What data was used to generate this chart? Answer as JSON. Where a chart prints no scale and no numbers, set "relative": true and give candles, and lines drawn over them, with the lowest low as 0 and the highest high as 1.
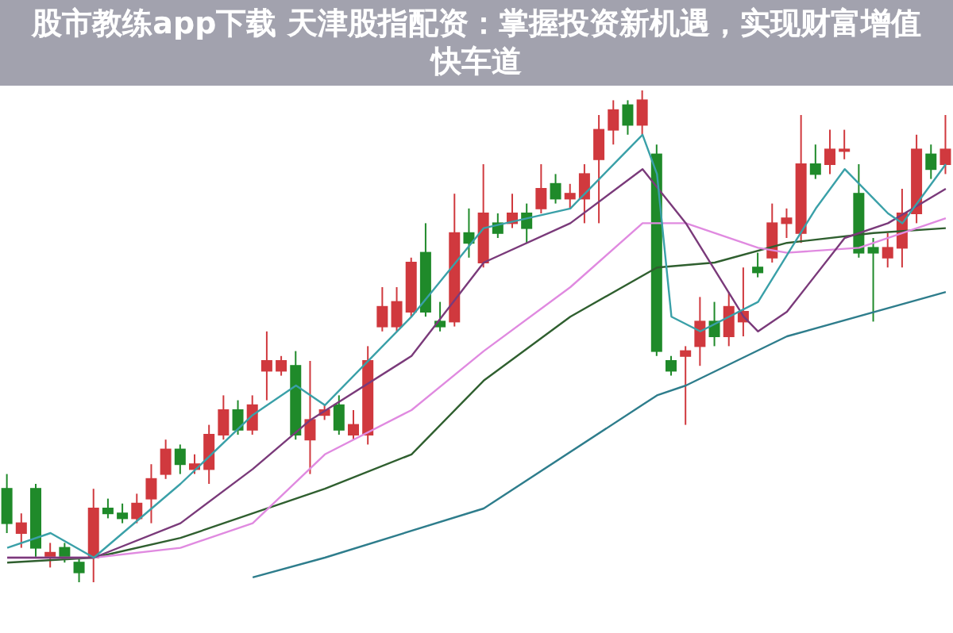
{
  "chart_data": {
    "type": "candlestick",
    "title": "股市教练app下载 天津股指配资：掌握投资新机遇，实现财富增值快车道",
    "relative": true,
    "categories": [
      null,
      null,
      null,
      null,
      null,
      null,
      null,
      null,
      null,
      null,
      null,
      null,
      null,
      null,
      null,
      null,
      null,
      null,
      null,
      null,
      null,
      null,
      null,
      null,
      null,
      null,
      null,
      null,
      null,
      null,
      null,
      null,
      null,
      null,
      null,
      null,
      null,
      null,
      null,
      null,
      null,
      null,
      null,
      null,
      null,
      null,
      null,
      null,
      null,
      null,
      null,
      null,
      null,
      null,
      null,
      null,
      null,
      null,
      null,
      null,
      null,
      null,
      null,
      null,
      null,
      null
    ],
    "ohlc": [
      [
        0.19,
        0.22,
        0.1,
        0.12
      ],
      [
        0.1,
        0.14,
        0.07,
        0.12
      ],
      [
        0.19,
        0.2,
        0.05,
        0.07
      ],
      [
        0.05,
        0.08,
        0.03,
        0.06
      ],
      [
        0.07,
        0.08,
        0.04,
        0.05
      ],
      [
        0.04,
        0.05,
        0,
        0.02
      ],
      [
        0.05,
        0.19,
        0,
        0.15
      ],
      [
        0.15,
        0.17,
        0.13,
        0.14
      ],
      [
        0.14,
        0.16,
        0.12,
        0.13
      ],
      [
        0.13,
        0.18,
        0.12,
        0.16
      ],
      [
        0.17,
        0.24,
        0.12,
        0.21
      ],
      [
        0.22,
        0.29,
        0.21,
        0.27
      ],
      [
        0.27,
        0.28,
        0.22,
        0.24
      ],
      [
        0.23,
        0.26,
        0.22,
        0.24
      ],
      [
        0.23,
        0.32,
        0.2,
        0.3
      ],
      [
        0.3,
        0.38,
        0.29,
        0.35
      ],
      [
        0.35,
        0.37,
        0.3,
        0.31
      ],
      [
        0.31,
        0.38,
        0.3,
        0.36
      ],
      [
        0.43,
        0.51,
        0.37,
        0.45
      ],
      [
        0.43,
        0.46,
        0.42,
        0.45
      ],
      [
        0.44,
        0.47,
        0.29,
        0.3
      ],
      [
        0.29,
        0.45,
        0.22,
        0.33
      ],
      [
        0.34,
        0.36,
        0.33,
        0.35
      ],
      [
        0.36,
        0.38,
        0.3,
        0.31
      ],
      [
        0.3,
        0.35,
        0.29,
        0.32
      ],
      [
        0.3,
        0.48,
        0.28,
        0.45
      ],
      [
        0.52,
        0.6,
        0.51,
        0.56
      ],
      [
        0.52,
        0.6,
        0.51,
        0.57
      ],
      [
        0.55,
        0.66,
        0.54,
        0.65
      ],
      [
        0.67,
        0.73,
        0.54,
        0.55
      ],
      [
        0.53,
        0.57,
        0.51,
        0.52
      ],
      [
        0.53,
        0.79,
        0.52,
        0.71
      ],
      [
        0.71,
        0.76,
        0.66,
        0.69
      ],
      [
        0.65,
        0.85,
        0.64,
        0.75
      ],
      [
        0.73,
        0.75,
        0.7,
        0.71
      ],
      [
        0.73,
        0.79,
        0.72,
        0.75
      ],
      [
        0.75,
        0.77,
        0.69,
        0.72
      ],
      [
        0.76,
        0.85,
        0.75,
        0.8
      ],
      [
        0.81,
        0.83,
        0.77,
        0.78
      ],
      [
        0.78,
        0.81,
        0.76,
        0.79
      ],
      [
        0.78,
        0.85,
        0.73,
        0.83
      ],
      [
        0.86,
        0.95,
        0.73,
        0.92
      ],
      [
        0.92,
        0.98,
        0.89,
        0.96
      ],
      [
        0.97,
        0.98,
        0.91,
        0.93
      ],
      [
        0.93,
        1,
        0.91,
        0.98
      ],
      [
        0.87,
        0.89,
        0.46,
        0.47
      ],
      [
        0.45,
        0.46,
        0.42,
        0.43
      ],
      [
        0.46,
        0.48,
        0.32,
        0.47
      ],
      [
        0.48,
        0.58,
        0.44,
        0.53
      ],
      [
        0.53,
        0.57,
        0.48,
        0.5
      ],
      [
        0.5,
        0.59,
        0.48,
        0.56
      ],
      [
        0.53,
        0.64,
        0.5,
        0.55
      ],
      [
        0.64,
        0.67,
        0.62,
        0.63
      ],
      [
        0.66,
        0.77,
        0.65,
        0.73
      ],
      [
        0.73,
        0.76,
        0.7,
        0.74
      ],
      [
        0.71,
        0.95,
        0.69,
        0.85
      ],
      [
        0.85,
        0.89,
        0.82,
        0.83
      ],
      [
        0.85,
        0.92,
        0.83,
        0.88
      ],
      [
        0.88,
        0.92,
        0.86,
        0.88
      ],
      [
        0.79,
        0.85,
        0.66,
        0.67
      ],
      [
        0.68,
        0.7,
        0.53,
        0.67
      ],
      [
        0.66,
        0.71,
        0.64,
        0.68
      ],
      [
        0.68,
        0.8,
        0.64,
        0.75
      ],
      [
        0.75,
        0.91,
        0.73,
        0.88
      ],
      [
        0.87,
        0.89,
        0.82,
        0.84
      ],
      [
        0.85,
        0.95,
        0.83,
        0.88
      ]
    ],
    "series": [
      {
        "type": "line",
        "color": "#2e7d8c",
        "values": [
          null,
          null,
          null,
          null,
          null,
          null,
          null,
          null,
          null,
          null,
          null,
          null,
          null,
          null,
          null,
          null,
          null,
          0.01,
          null,
          null,
          null,
          null,
          0.05,
          null,
          null,
          null,
          null,
          null,
          null,
          null,
          null,
          null,
          null,
          0.15,
          null,
          null,
          null,
          null,
          null,
          null,
          null,
          null,
          null,
          null,
          null,
          0.38,
          null,
          0.4,
          null,
          null,
          null,
          null,
          null,
          null,
          0.5,
          null,
          null,
          null,
          null,
          null,
          null,
          null,
          null,
          null,
          null,
          0.59
        ]
      },
      {
        "type": "line",
        "color": "#2f5f2f",
        "values": [
          0.04,
          null,
          null,
          null,
          null,
          null,
          0.05,
          null,
          null,
          null,
          null,
          null,
          0.09,
          null,
          null,
          null,
          null,
          null,
          null,
          null,
          null,
          null,
          0.19,
          null,
          null,
          null,
          null,
          null,
          0.26,
          null,
          null,
          null,
          null,
          0.41,
          null,
          null,
          null,
          null,
          null,
          0.54,
          null,
          null,
          null,
          null,
          null,
          0.64,
          null,
          null,
          null,
          0.65,
          null,
          null,
          null,
          null,
          0.69,
          null,
          null,
          null,
          null,
          null,
          0.71,
          null,
          null,
          null,
          null,
          0.72
        ]
      },
      {
        "type": "line",
        "color": "#e08ae0",
        "values": [
          0.05,
          null,
          null,
          null,
          null,
          null,
          0.05,
          null,
          null,
          null,
          null,
          null,
          0.07,
          null,
          null,
          null,
          null,
          0.12,
          null,
          null,
          null,
          null,
          0.26,
          null,
          null,
          null,
          null,
          null,
          0.35,
          null,
          null,
          null,
          null,
          0.47,
          null,
          null,
          null,
          null,
          null,
          0.6,
          null,
          null,
          null,
          null,
          0.73,
          null,
          null,
          0.73,
          null,
          null,
          null,
          null,
          0.68,
          null,
          0.67,
          null,
          null,
          null,
          null,
          0.68,
          null,
          null,
          null,
          null,
          0.73,
          0.74
        ]
      },
      {
        "type": "line",
        "color": "#7a3a7a",
        "values": [
          0.05,
          null,
          null,
          null,
          null,
          null,
          0.05,
          null,
          null,
          null,
          null,
          null,
          0.12,
          null,
          null,
          null,
          null,
          0.23,
          null,
          null,
          null,
          0.33,
          null,
          null,
          null,
          null,
          null,
          null,
          0.46,
          null,
          null,
          null,
          null,
          0.65,
          null,
          null,
          null,
          null,
          null,
          0.73,
          null,
          null,
          null,
          null,
          0.84,
          null,
          null,
          0.73,
          null,
          null,
          null,
          0.54,
          0.51,
          null,
          0.55,
          null,
          null,
          null,
          0.7,
          null,
          null,
          0.73,
          null,
          null,
          null,
          0.8
        ]
      },
      {
        "type": "line",
        "color": "#3aa0a8",
        "values": [
          0.07,
          null,
          null,
          0.1,
          null,
          null,
          0.05,
          null,
          null,
          null,
          null,
          null,
          0.2,
          null,
          null,
          null,
          null,
          0.34,
          null,
          null,
          0.4,
          null,
          0.36,
          null,
          null,
          null,
          null,
          null,
          0.54,
          null,
          null,
          null,
          null,
          0.72,
          null,
          null,
          null,
          null,
          null,
          0.76,
          null,
          null,
          null,
          null,
          0.91,
          0.83,
          0.54,
          null,
          0.51,
          null,
          null,
          null,
          0.57,
          null,
          null,
          null,
          0.76,
          null,
          0.84,
          null,
          null,
          0.75,
          0.73,
          null,
          0.81,
          0.85
        ]
      }
    ]
  }
}
